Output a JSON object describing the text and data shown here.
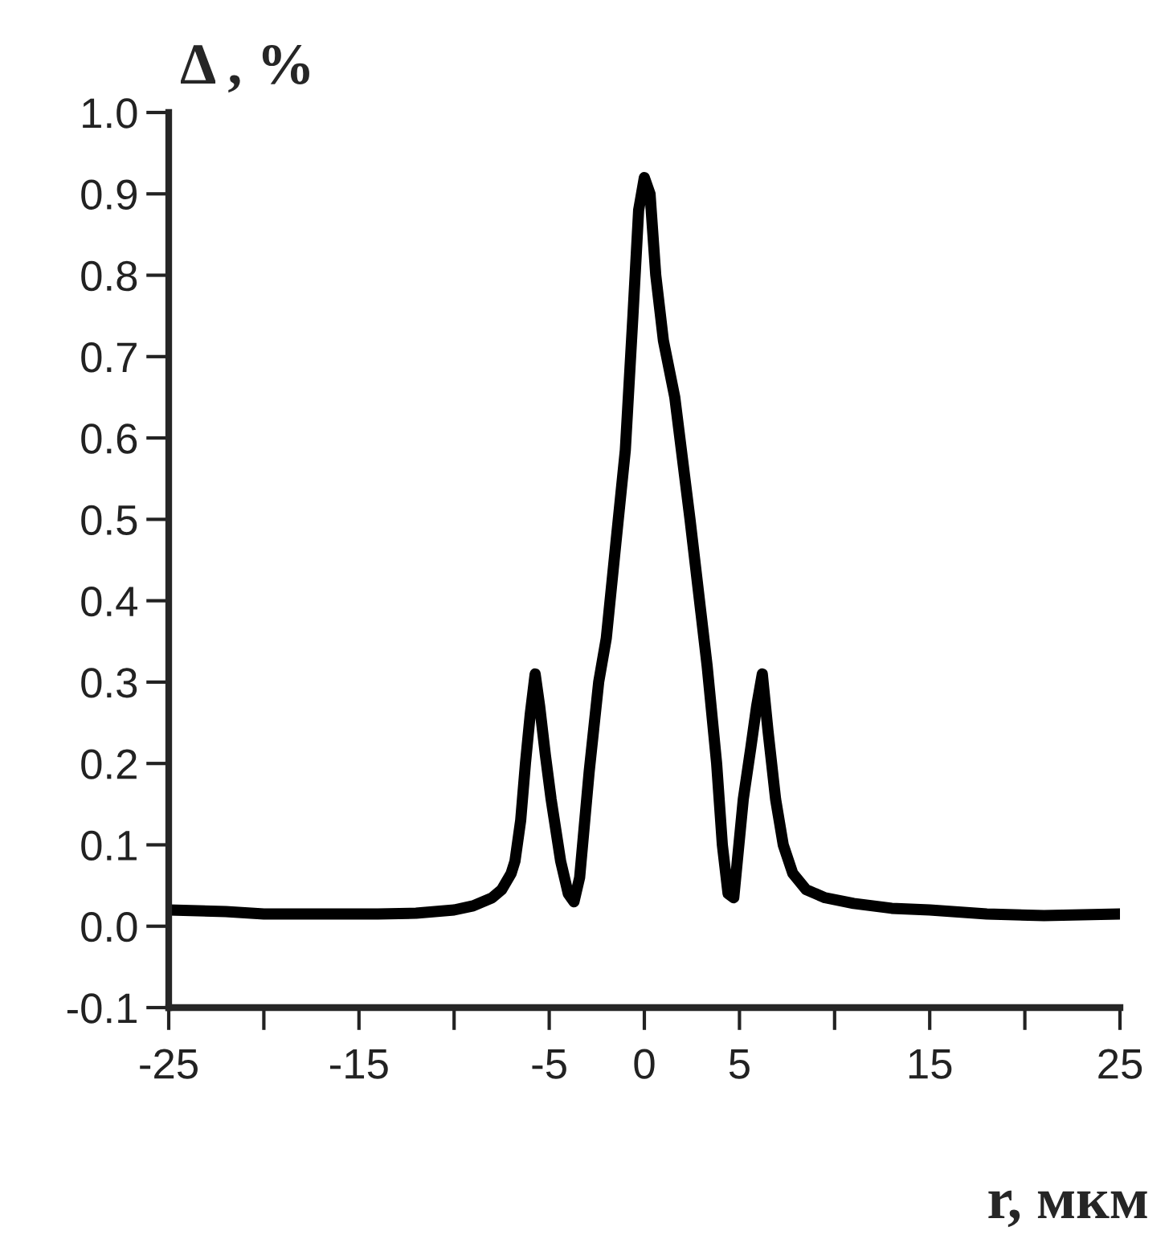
{
  "chart_data": {
    "type": "line",
    "xlabel": "r, мкм",
    "ylabel": "Δ , %",
    "x": [
      -25,
      -22,
      -20,
      -17,
      -14,
      -12,
      -10,
      -9,
      -8,
      -7.5,
      -7,
      -6.8,
      -6.5,
      -6.25,
      -6,
      -5.74,
      -5.5,
      -5.2,
      -4.9,
      -4.4,
      -4,
      -3.7,
      -3.4,
      -2.9,
      -2.4,
      -2,
      -1.5,
      -1,
      -0.6,
      -0.3,
      0,
      0.3,
      0.6,
      1,
      1.6,
      2.4,
      3.3,
      3.8,
      4.1,
      4.4,
      4.7,
      5.2,
      5.6,
      5.9,
      6.2,
      6.5,
      6.9,
      7.3,
      7.8,
      8.5,
      9.5,
      11,
      13,
      15,
      18,
      21,
      25
    ],
    "series": [
      {
        "color": "#000000",
        "values": [
          0.02,
          0.018,
          0.015,
          0.015,
          0.015,
          0.016,
          0.02,
          0.025,
          0.035,
          0.045,
          0.065,
          0.08,
          0.13,
          0.2,
          0.26,
          0.31,
          0.27,
          0.21,
          0.156,
          0.08,
          0.04,
          0.03,
          0.06,
          0.19,
          0.3,
          0.354,
          0.47,
          0.585,
          0.75,
          0.88,
          0.92,
          0.9,
          0.8,
          0.72,
          0.65,
          0.5,
          0.32,
          0.2,
          0.1,
          0.04,
          0.035,
          0.156,
          0.22,
          0.27,
          0.31,
          0.24,
          0.156,
          0.1,
          0.065,
          0.045,
          0.035,
          0.028,
          0.022,
          0.02,
          0.015,
          0.013,
          0.015
        ]
      }
    ],
    "xlim": [
      -25,
      25
    ],
    "xticks": [
      -25,
      {
        "value": -20,
        "label": null
      },
      -15,
      {
        "value": -10,
        "label": null
      },
      -5,
      0,
      5,
      {
        "value": 10,
        "label": null
      },
      15,
      {
        "value": 20,
        "label": null
      },
      25
    ],
    "ylim": [
      -0.1,
      1.0
    ],
    "yticks": [
      -0.1,
      {
        "value": 0,
        "label": "0.0"
      },
      0.1,
      0.2,
      0.3,
      0.4,
      0.5,
      0.6,
      0.7,
      0.8,
      0.9,
      {
        "value": 1,
        "label": "1.0"
      }
    ],
    "grid": false,
    "legend": false,
    "line_style": "solid",
    "marker": "none"
  }
}
